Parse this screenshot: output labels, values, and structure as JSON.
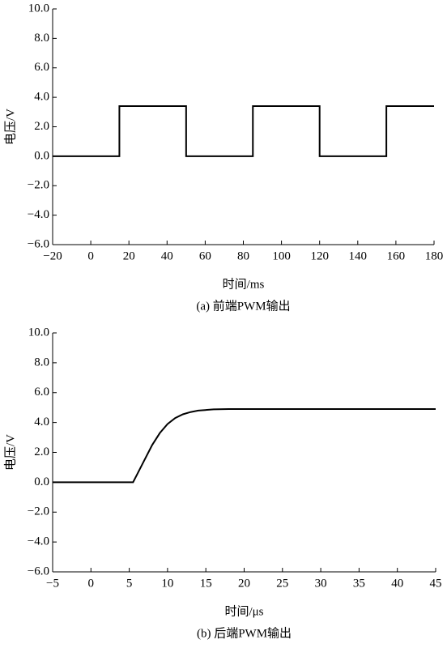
{
  "chart_data": [
    {
      "type": "line",
      "x_label": "时间/ms",
      "y_label": "电压/V",
      "caption": "(a) 前端PWM输出",
      "x": [
        -20,
        15,
        15,
        50,
        50,
        85,
        85,
        120,
        120,
        155,
        155,
        180
      ],
      "series": [
        {
          "color": "#000000",
          "values": [
            0,
            0,
            3.4,
            3.4,
            0,
            0,
            3.4,
            3.4,
            0,
            0,
            3.4,
            3.4
          ]
        }
      ],
      "xlim": [
        -20,
        180
      ],
      "xticks": [
        {
          "value": -20,
          "label": "−20"
        },
        0,
        20,
        40,
        60,
        80,
        100,
        120,
        140,
        160,
        180
      ],
      "ylim": [
        -6,
        10
      ],
      "yticks": [
        {
          "value": 10,
          "label": "10.0"
        },
        {
          "value": 8,
          "label": "8.0"
        },
        {
          "value": 6,
          "label": "6.0"
        },
        {
          "value": 4,
          "label": "4.0"
        },
        {
          "value": 2,
          "label": "2.0"
        },
        {
          "value": 0,
          "label": "0.0"
        },
        {
          "value": -2,
          "label": "−2.0"
        },
        {
          "value": -4,
          "label": "−4.0"
        },
        {
          "value": -6,
          "label": "−6.0"
        }
      ]
    },
    {
      "type": "line",
      "x_label": "时间/μs",
      "y_label": "电压/V",
      "caption": "(b) 后端PWM输出",
      "x": [
        -5,
        5.5,
        6,
        7,
        8,
        9,
        10,
        11,
        12,
        13,
        14,
        16,
        18,
        45
      ],
      "series": [
        {
          "color": "#000000",
          "values": [
            0,
            0,
            0.5,
            1.5,
            2.5,
            3.3,
            3.9,
            4.3,
            4.55,
            4.7,
            4.8,
            4.88,
            4.9,
            4.9
          ]
        }
      ],
      "xlim": [
        -5,
        45
      ],
      "xticks": [
        {
          "value": -5,
          "label": "−5"
        },
        0,
        5,
        10,
        15,
        20,
        25,
        30,
        35,
        40,
        45
      ],
      "ylim": [
        -6,
        10
      ],
      "yticks": [
        {
          "value": 10,
          "label": "10.0"
        },
        {
          "value": 8,
          "label": "8.0"
        },
        {
          "value": 6,
          "label": "6.0"
        },
        {
          "value": 4,
          "label": "4.0"
        },
        {
          "value": 2,
          "label": "2.0"
        },
        {
          "value": 0,
          "label": "0.0"
        },
        {
          "value": -2,
          "label": "−2.0"
        },
        {
          "value": -4,
          "label": "−4.0"
        },
        {
          "value": -6,
          "label": "−6.0"
        }
      ]
    }
  ]
}
